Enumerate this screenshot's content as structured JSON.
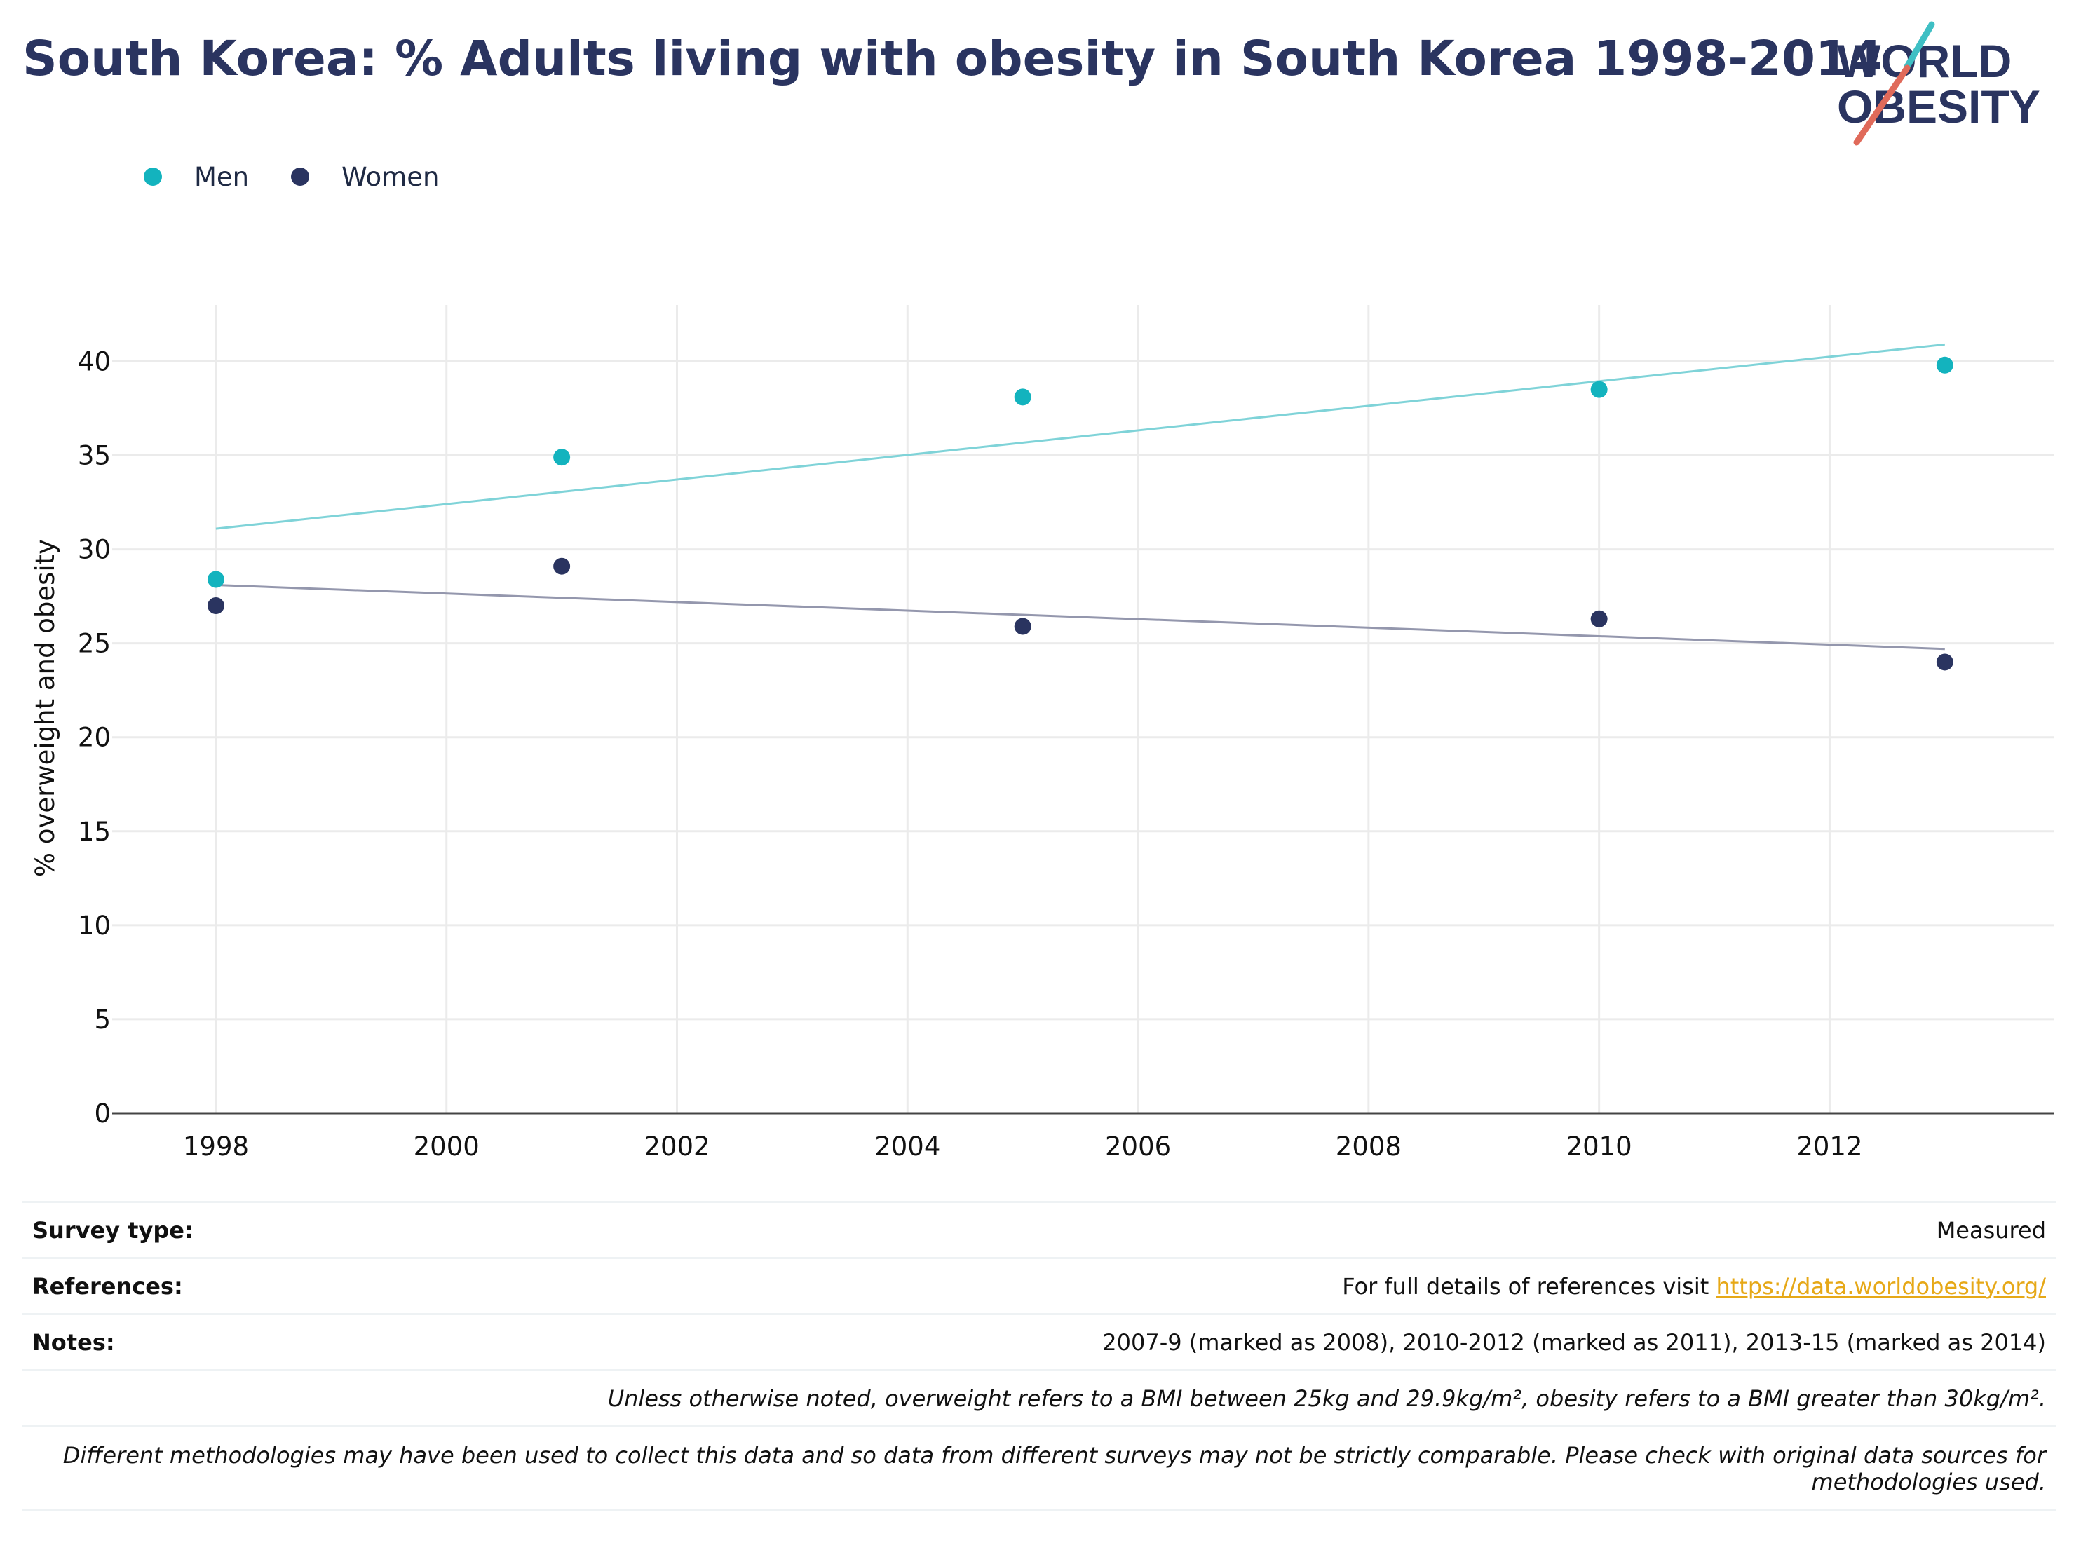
{
  "title": "South Korea: % Adults living with obesity in South Korea 1998-2014",
  "logo": {
    "line1": "WORLD",
    "line2": "OBESITY"
  },
  "legend": [
    {
      "label": "Men",
      "color": "#13b3be"
    },
    {
      "label": "Women",
      "color": "#2a3460"
    }
  ],
  "chart_data": {
    "type": "scatter",
    "title": "South Korea: % Adults living with obesity in South Korea 1998-2014",
    "xlabel": "",
    "ylabel": "% overweight and obesity",
    "xlim": [
      1997.1,
      2013.95
    ],
    "ylim": [
      0,
      43
    ],
    "xticks": [
      1998,
      2000,
      2002,
      2004,
      2006,
      2008,
      2010,
      2012
    ],
    "yticks": [
      0,
      5,
      10,
      15,
      20,
      25,
      30,
      35,
      40
    ],
    "grid": true,
    "legend_position": "top-left",
    "series": [
      {
        "name": "Men",
        "color": "#13b3be",
        "trend_color": "#7fd3d8",
        "x": [
          1998,
          2001,
          2005,
          2010,
          2013
        ],
        "y": [
          28.4,
          34.9,
          38.1,
          38.5,
          39.8
        ],
        "trend": [
          [
            1998,
            31.1
          ],
          [
            2013,
            40.9
          ]
        ]
      },
      {
        "name": "Women",
        "color": "#2a3460",
        "trend_color": "#9497ad",
        "x": [
          1998,
          2001,
          2005,
          2010,
          2013
        ],
        "y": [
          27.0,
          29.1,
          25.9,
          26.3,
          24.0
        ],
        "trend": [
          [
            1998,
            28.1
          ],
          [
            2013,
            24.7
          ]
        ]
      }
    ]
  },
  "info": {
    "survey_type_label": "Survey type:",
    "survey_type_value": "Measured",
    "references_label": "References:",
    "references_text": "For full details of references visit ",
    "references_link": "https://data.worldobesity.org/",
    "notes_label": "Notes:",
    "notes_value": "2007-9 (marked as 2008), 2010-2012 (marked as 2011), 2013-15 (marked as 2014)",
    "bmi_note": "Unless otherwise noted, overweight refers to a BMI between 25kg and 29.9kg/m², obesity refers to a BMI greater than 30kg/m².",
    "method_note": "Different methodologies may have been used to collect this data and so data from different surveys may not be strictly comparable. Please check with original data sources for methodologies used."
  }
}
